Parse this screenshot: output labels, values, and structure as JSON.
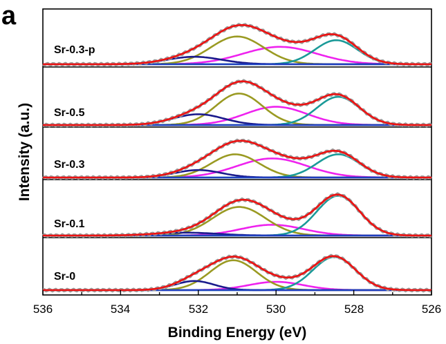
{
  "panel_label": "a",
  "chart_data": {
    "type": "line",
    "title": "",
    "xlabel": "Binding Energy (eV)",
    "ylabel": "Intensity (a.u.)",
    "xlim": [
      536,
      526
    ],
    "x_reversed": true,
    "x_ticks": [
      "536",
      "534",
      "532",
      "530",
      "528",
      "526"
    ],
    "grid": false,
    "y_ticks": false,
    "colors": {
      "raw": "#9a9a9a",
      "envelope": "#ee1111",
      "lattice_oxygen": "#1a9a98",
      "oxygen_vacancy": "#ee22ee",
      "hydroxyl": "#9a9a22",
      "adsorbed_water": "#1a1a8c",
      "baseline": "#1e3fbf"
    },
    "stacks": [
      {
        "label": "Sr-0.3-p",
        "peaks": [
          {
            "component": "lattice_oxygen",
            "center": 528.45,
            "height": 0.58,
            "width": 0.55
          },
          {
            "component": "oxygen_vacancy",
            "center": 529.9,
            "height": 0.42,
            "width": 0.95
          },
          {
            "component": "hydroxyl",
            "center": 531.0,
            "height": 0.67,
            "width": 0.68
          },
          {
            "component": "adsorbed_water",
            "center": 532.1,
            "height": 0.18,
            "width": 0.7
          }
        ]
      },
      {
        "label": "Sr-0.5",
        "peaks": [
          {
            "component": "lattice_oxygen",
            "center": 528.4,
            "height": 0.68,
            "width": 0.55
          },
          {
            "component": "oxygen_vacancy",
            "center": 530.0,
            "height": 0.44,
            "width": 0.8
          },
          {
            "component": "hydroxyl",
            "center": 530.95,
            "height": 0.76,
            "width": 0.6
          },
          {
            "component": "adsorbed_water",
            "center": 532.0,
            "height": 0.26,
            "width": 0.65
          }
        ]
      },
      {
        "label": "Sr-0.3",
        "peaks": [
          {
            "component": "lattice_oxygen",
            "center": 528.4,
            "height": 0.56,
            "width": 0.55
          },
          {
            "component": "oxygen_vacancy",
            "center": 530.1,
            "height": 0.46,
            "width": 0.9
          },
          {
            "component": "hydroxyl",
            "center": 531.05,
            "height": 0.56,
            "width": 0.62
          },
          {
            "component": "adsorbed_water",
            "center": 532.0,
            "height": 0.18,
            "width": 0.6
          }
        ]
      },
      {
        "label": "Sr-0.1",
        "peaks": [
          {
            "component": "lattice_oxygen",
            "center": 528.4,
            "height": 0.96,
            "width": 0.55
          },
          {
            "component": "oxygen_vacancy",
            "center": 530.1,
            "height": 0.26,
            "width": 0.8
          },
          {
            "component": "hydroxyl",
            "center": 530.95,
            "height": 0.69,
            "width": 0.68
          },
          {
            "component": "adsorbed_water",
            "center": 532.3,
            "height": 0.07,
            "width": 0.8
          }
        ]
      },
      {
        "label": "Sr-0",
        "peaks": [
          {
            "component": "lattice_oxygen",
            "center": 528.5,
            "height": 0.8,
            "width": 0.55
          },
          {
            "component": "oxygen_vacancy",
            "center": 530.0,
            "height": 0.2,
            "width": 0.7
          },
          {
            "component": "hydroxyl",
            "center": 531.1,
            "height": 0.72,
            "width": 0.6
          },
          {
            "component": "adsorbed_water",
            "center": 532.1,
            "height": 0.22,
            "width": 0.5
          }
        ]
      }
    ]
  }
}
